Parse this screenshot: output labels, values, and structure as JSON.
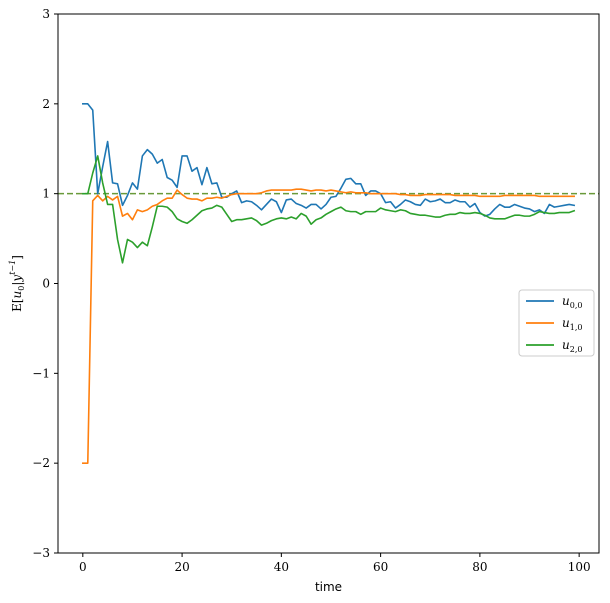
{
  "chart_data": {
    "type": "line",
    "xlabel": "time",
    "ylabel": "E[u0|y^{t-1}]",
    "ylabel_parts": {
      "e": "E",
      "open": "[",
      "u": "u",
      "u_sub": "0",
      "bar": "|",
      "y": "y",
      "y_sup": "t−1",
      "close": "]"
    },
    "xlim": [
      -5,
      104
    ],
    "ylim": [
      -3,
      3
    ],
    "xticks": [
      0,
      20,
      40,
      60,
      80,
      100
    ],
    "yticks": [
      -3,
      -2,
      -1,
      0,
      1,
      2,
      3
    ],
    "xtick_labels": [
      "0",
      "20",
      "40",
      "60",
      "80",
      "100"
    ],
    "ytick_labels": [
      "−3",
      "−2",
      "−1",
      "0",
      "1",
      "2",
      "3"
    ],
    "grid": false,
    "legend_position": "center-right",
    "reference_line": {
      "y": 1.0,
      "style": "dashed",
      "color": "#6a9a3a"
    },
    "series": [
      {
        "name": "u_{0,0}",
        "label_main": "u",
        "label_sub": "0,0",
        "color": "#1f77b4",
        "x": [
          0,
          1,
          2,
          3,
          4,
          5,
          6,
          7,
          8,
          9,
          10,
          11,
          12,
          13,
          14,
          15,
          16,
          17,
          18,
          19,
          20,
          21,
          22,
          23,
          24,
          25,
          26,
          27,
          28,
          29,
          30,
          31,
          32,
          33,
          34,
          35,
          36,
          37,
          38,
          39,
          40,
          41,
          42,
          43,
          44,
          45,
          46,
          47,
          48,
          49,
          50,
          51,
          52,
          53,
          54,
          55,
          56,
          57,
          58,
          59,
          60,
          61,
          62,
          63,
          64,
          65,
          66,
          67,
          68,
          69,
          70,
          71,
          72,
          73,
          74,
          75,
          76,
          77,
          78,
          79,
          80,
          81,
          82,
          83,
          84,
          85,
          86,
          87,
          88,
          89,
          90,
          91,
          92,
          93,
          94,
          95,
          96,
          97,
          98,
          99
        ],
        "y": [
          2.0,
          2.0,
          1.93,
          1.0,
          1.3,
          1.58,
          1.12,
          1.11,
          0.87,
          0.98,
          1.12,
          1.05,
          1.42,
          1.49,
          1.44,
          1.34,
          1.38,
          1.18,
          1.15,
          1.07,
          1.42,
          1.42,
          1.25,
          1.29,
          1.1,
          1.29,
          1.11,
          1.12,
          0.96,
          0.96,
          1.0,
          1.03,
          0.9,
          0.92,
          0.91,
          0.87,
          0.82,
          0.88,
          0.94,
          0.91,
          0.79,
          0.93,
          0.94,
          0.89,
          0.87,
          0.84,
          0.88,
          0.88,
          0.83,
          0.88,
          0.96,
          0.97,
          1.06,
          1.16,
          1.17,
          1.11,
          1.11,
          0.98,
          1.03,
          1.03,
          1.0,
          0.9,
          0.91,
          0.84,
          0.88,
          0.93,
          0.91,
          0.88,
          0.87,
          0.94,
          0.91,
          0.92,
          0.94,
          0.9,
          0.9,
          0.93,
          0.91,
          0.91,
          0.85,
          0.89,
          0.79,
          0.75,
          0.77,
          0.83,
          0.88,
          0.85,
          0.85,
          0.88,
          0.86,
          0.84,
          0.83,
          0.8,
          0.82,
          0.78,
          0.88,
          0.85,
          0.86,
          0.87,
          0.88,
          0.87
        ]
      },
      {
        "name": "u_{1,0}",
        "label_main": "u",
        "label_sub": "1,0",
        "color": "#ff7f0e",
        "x": [
          0,
          1,
          2,
          3,
          4,
          5,
          6,
          7,
          8,
          9,
          10,
          11,
          12,
          13,
          14,
          15,
          16,
          17,
          18,
          19,
          20,
          21,
          22,
          23,
          24,
          25,
          26,
          27,
          28,
          29,
          30,
          31,
          32,
          33,
          34,
          35,
          36,
          37,
          38,
          39,
          40,
          41,
          42,
          43,
          44,
          45,
          46,
          47,
          48,
          49,
          50,
          51,
          52,
          53,
          54,
          55,
          56,
          57,
          58,
          59,
          60,
          61,
          62,
          63,
          64,
          65,
          66,
          67,
          68,
          69,
          70,
          71,
          72,
          73,
          74,
          75,
          76,
          77,
          78,
          79,
          80,
          81,
          82,
          83,
          84,
          85,
          86,
          87,
          88,
          89,
          90,
          91,
          92,
          93,
          94,
          95,
          96,
          97,
          98,
          99
        ],
        "y": [
          -2.0,
          -2.0,
          0.92,
          0.98,
          0.92,
          0.97,
          0.93,
          0.97,
          0.75,
          0.78,
          0.71,
          0.82,
          0.8,
          0.82,
          0.86,
          0.88,
          0.92,
          0.95,
          0.95,
          1.04,
          0.99,
          0.95,
          0.94,
          0.94,
          0.92,
          0.95,
          0.95,
          0.96,
          0.95,
          0.97,
          0.99,
          1.0,
          1.0,
          1.0,
          1.0,
          1.0,
          1.01,
          1.03,
          1.04,
          1.04,
          1.04,
          1.04,
          1.04,
          1.05,
          1.05,
          1.04,
          1.03,
          1.04,
          1.04,
          1.03,
          1.04,
          1.03,
          1.02,
          1.01,
          1.02,
          1.01,
          1.01,
          1.01,
          1.0,
          1.0,
          1.0,
          1.0,
          1.0,
          1.0,
          0.99,
          0.99,
          0.98,
          0.98,
          0.98,
          0.99,
          0.99,
          0.99,
          0.99,
          0.99,
          0.99,
          0.98,
          0.98,
          0.98,
          0.98,
          0.98,
          0.97,
          0.97,
          0.97,
          0.97,
          0.97,
          0.98,
          0.98,
          0.98,
          0.98,
          0.98,
          0.98,
          0.98,
          0.97,
          0.97,
          0.97,
          0.97,
          0.97,
          0.97,
          0.97,
          0.97
        ]
      },
      {
        "name": "u_{2,0}",
        "label_main": "u",
        "label_sub": "2,0",
        "color": "#2ca02c",
        "x": [
          0,
          1,
          2,
          3,
          4,
          5,
          6,
          7,
          8,
          9,
          10,
          11,
          12,
          13,
          14,
          15,
          16,
          17,
          18,
          19,
          20,
          21,
          22,
          23,
          24,
          25,
          26,
          27,
          28,
          29,
          30,
          31,
          32,
          33,
          34,
          35,
          36,
          37,
          38,
          39,
          40,
          41,
          42,
          43,
          44,
          45,
          46,
          47,
          48,
          49,
          50,
          51,
          52,
          53,
          54,
          55,
          56,
          57,
          58,
          59,
          60,
          61,
          62,
          63,
          64,
          65,
          66,
          67,
          68,
          69,
          70,
          71,
          72,
          73,
          74,
          75,
          76,
          77,
          78,
          79,
          80,
          81,
          82,
          83,
          84,
          85,
          86,
          87,
          88,
          89,
          90,
          91,
          92,
          93,
          94,
          95,
          96,
          97,
          98,
          99
        ],
        "y": [
          1.0,
          1.0,
          1.23,
          1.42,
          1.12,
          0.88,
          0.88,
          0.49,
          0.23,
          0.49,
          0.46,
          0.4,
          0.46,
          0.42,
          0.63,
          0.86,
          0.86,
          0.85,
          0.8,
          0.72,
          0.69,
          0.67,
          0.71,
          0.76,
          0.81,
          0.83,
          0.84,
          0.87,
          0.85,
          0.77,
          0.69,
          0.71,
          0.71,
          0.72,
          0.73,
          0.7,
          0.65,
          0.67,
          0.7,
          0.72,
          0.73,
          0.72,
          0.74,
          0.72,
          0.78,
          0.75,
          0.66,
          0.71,
          0.73,
          0.77,
          0.8,
          0.83,
          0.85,
          0.81,
          0.8,
          0.8,
          0.77,
          0.8,
          0.8,
          0.8,
          0.84,
          0.82,
          0.81,
          0.8,
          0.82,
          0.81,
          0.78,
          0.77,
          0.76,
          0.76,
          0.75,
          0.74,
          0.74,
          0.76,
          0.77,
          0.77,
          0.79,
          0.78,
          0.78,
          0.79,
          0.78,
          0.76,
          0.73,
          0.72,
          0.72,
          0.72,
          0.74,
          0.76,
          0.76,
          0.75,
          0.75,
          0.77,
          0.8,
          0.79,
          0.78,
          0.78,
          0.79,
          0.79,
          0.79,
          0.81
        ]
      }
    ]
  }
}
